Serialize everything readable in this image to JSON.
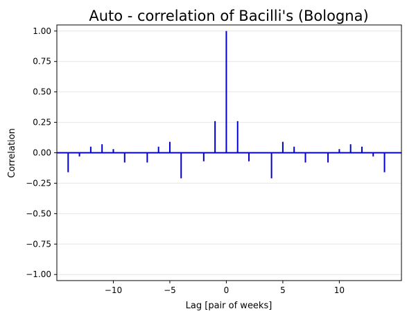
{
  "chart_data": {
    "type": "bar",
    "style": "stem",
    "title": "Auto - correlation of Bacilli's (Bologna)",
    "xlabel": "Lag [pair of weeks]",
    "ylabel": "Correlation",
    "xlim": [
      -15,
      15.5
    ],
    "ylim": [
      -1.05,
      1.05
    ],
    "grid": "horizontal",
    "x_ticks": [
      -10,
      -5,
      0,
      5,
      10
    ],
    "x_tick_labels": [
      "−10",
      "−5",
      "0",
      "5",
      "10"
    ],
    "y_ticks": [
      -1.0,
      -0.75,
      -0.5,
      -0.25,
      0.0,
      0.25,
      0.5,
      0.75,
      1.0
    ],
    "y_tick_labels": [
      "−1.00",
      "−0.75",
      "−0.50",
      "−0.25",
      "0.00",
      "0.25",
      "0.50",
      "0.75",
      "1.00"
    ],
    "color": "#0000cc",
    "lags": [
      -14,
      -13,
      -12,
      -11,
      -10,
      -9,
      -7,
      -6,
      -5,
      -4,
      -2,
      -1,
      0,
      1,
      2,
      4,
      5,
      6,
      7,
      9,
      10,
      11,
      12,
      13,
      14
    ],
    "values": [
      -0.16,
      -0.03,
      0.05,
      0.07,
      0.03,
      -0.08,
      -0.08,
      0.05,
      0.09,
      -0.21,
      -0.07,
      0.26,
      1.0,
      0.26,
      -0.07,
      -0.21,
      0.09,
      0.05,
      -0.08,
      -0.08,
      0.03,
      0.07,
      0.05,
      -0.03,
      -0.16
    ]
  }
}
